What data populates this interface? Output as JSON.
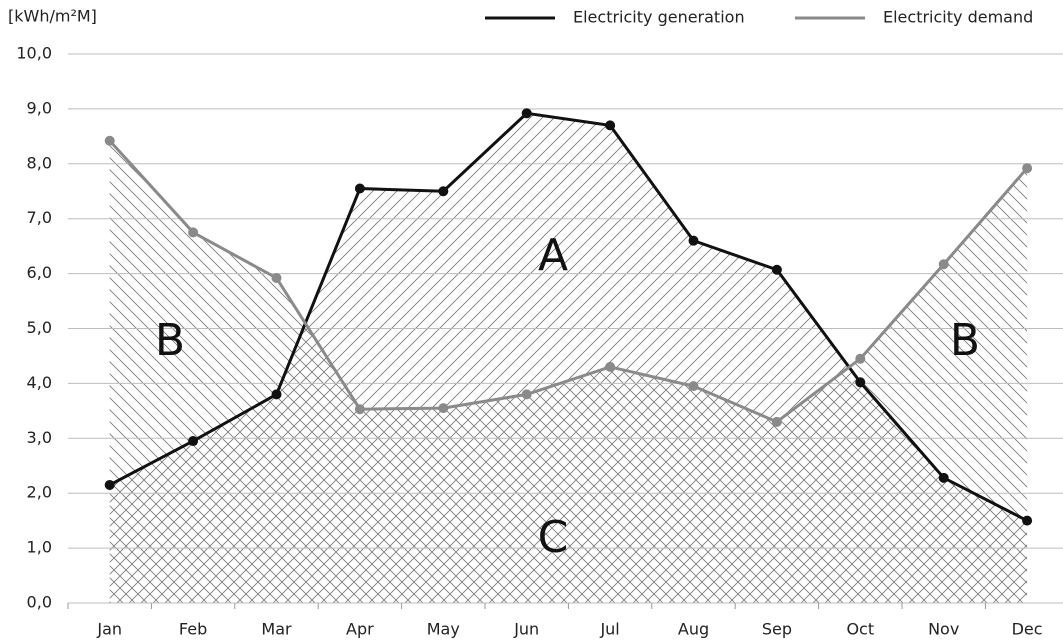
{
  "chart_data": {
    "type": "line",
    "y_label": "[kWh/m²M]",
    "categories": [
      "Jan",
      "Feb",
      "Mar",
      "Apr",
      "May",
      "Jun",
      "Jul",
      "Aug",
      "Sep",
      "Oct",
      "Nov",
      "Dec"
    ],
    "series": [
      {
        "name": "Electricity generation",
        "color": "#111111",
        "values": [
          2.15,
          2.95,
          3.8,
          7.55,
          7.5,
          8.92,
          8.7,
          6.6,
          6.07,
          4.02,
          2.28,
          1.5
        ]
      },
      {
        "name": "Electricity demand",
        "color": "#8a8a8a",
        "values": [
          8.42,
          6.75,
          5.92,
          3.53,
          3.55,
          3.8,
          4.3,
          3.95,
          3.3,
          4.45,
          6.17,
          7.92
        ]
      }
    ],
    "ylim": [
      0,
      10
    ],
    "yticks": [
      {
        "value": 0,
        "label": "0,0"
      },
      {
        "value": 1,
        "label": "1,0"
      },
      {
        "value": 2,
        "label": "2,0"
      },
      {
        "value": 3,
        "label": "3,0"
      },
      {
        "value": 4,
        "label": "4,0"
      },
      {
        "value": 5,
        "label": "5,0"
      },
      {
        "value": 6,
        "label": "6,0"
      },
      {
        "value": 7,
        "label": "7,0"
      },
      {
        "value": 8,
        "label": "8,0"
      },
      {
        "value": 9,
        "label": "9,0"
      },
      {
        "value": 10,
        "label": "10,0"
      }
    ],
    "grid": true,
    "legend": "top-right",
    "annotations": [
      "A",
      "B",
      "B",
      "C"
    ]
  }
}
